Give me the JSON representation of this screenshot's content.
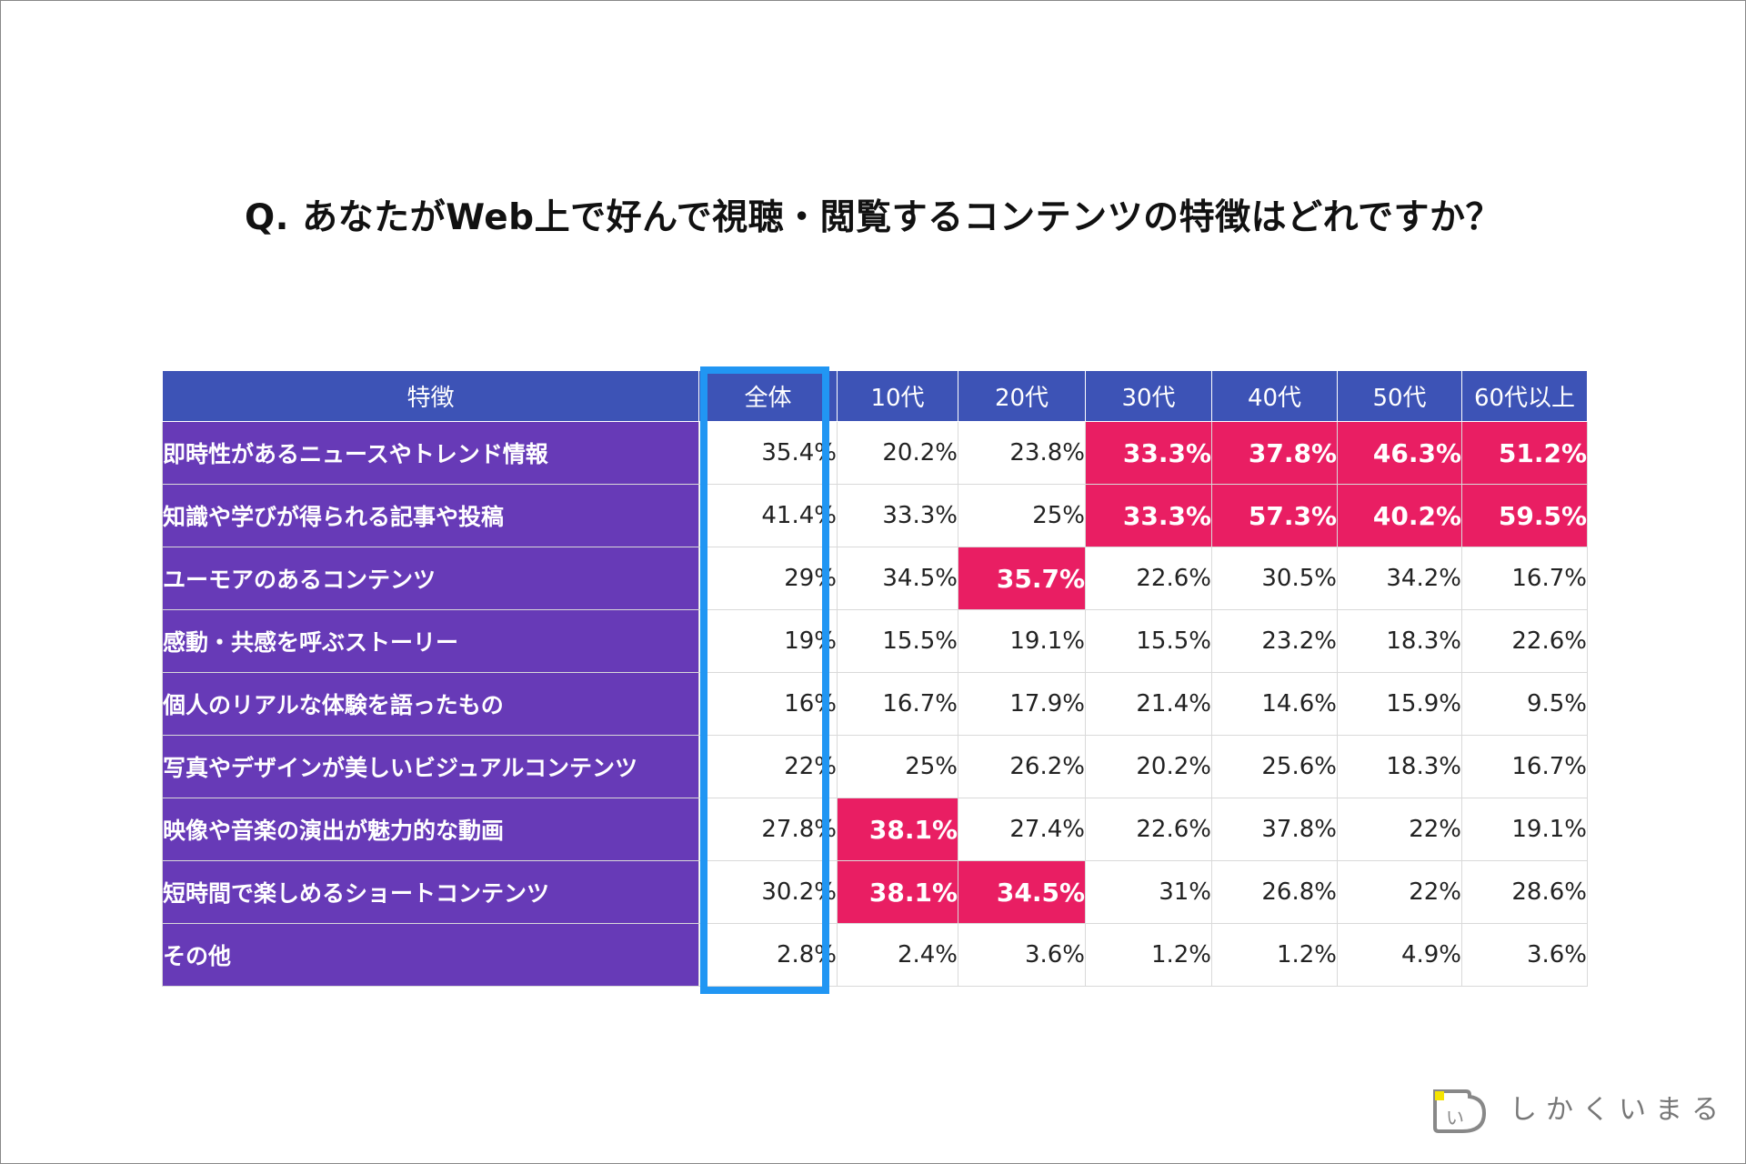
{
  "title": "Q. あなたがWeb上で好んで視聴・閲覧するコンテンツの特徴はどれですか？",
  "colors": {
    "header": "#3d53b6",
    "feature": "#673ab7",
    "highlight": "#e91e63",
    "overall_outline": "#2196f3"
  },
  "chart_data": {
    "type": "table",
    "title": "Q. あなたがWeb上で好んで視聴・閲覧するコンテンツの特徴はどれですか？",
    "columns": [
      "特徴",
      "全体",
      "10代",
      "20代",
      "30代",
      "40代",
      "50代",
      "60代以上"
    ],
    "rows": [
      {
        "label": "即時性があるニュースやトレンド情報",
        "values": [
          "35.4%",
          "20.2%",
          "23.8%",
          "33.3%",
          "37.8%",
          "46.3%",
          "51.2%"
        ],
        "highlight": [
          false,
          false,
          false,
          true,
          true,
          true,
          true
        ]
      },
      {
        "label": "知識や学びが得られる記事や投稿",
        "values": [
          "41.4%",
          "33.3%",
          "25%",
          "33.3%",
          "57.3%",
          "40.2%",
          "59.5%"
        ],
        "highlight": [
          false,
          false,
          false,
          true,
          true,
          true,
          true
        ]
      },
      {
        "label": "ユーモアのあるコンテンツ",
        "values": [
          "29%",
          "34.5%",
          "35.7%",
          "22.6%",
          "30.5%",
          "34.2%",
          "16.7%"
        ],
        "highlight": [
          false,
          false,
          true,
          false,
          false,
          false,
          false
        ]
      },
      {
        "label": "感動・共感を呼ぶストーリー",
        "values": [
          "19%",
          "15.5%",
          "19.1%",
          "15.5%",
          "23.2%",
          "18.3%",
          "22.6%"
        ],
        "highlight": [
          false,
          false,
          false,
          false,
          false,
          false,
          false
        ]
      },
      {
        "label": "個人のリアルな体験を語ったもの",
        "values": [
          "16%",
          "16.7%",
          "17.9%",
          "21.4%",
          "14.6%",
          "15.9%",
          "9.5%"
        ],
        "highlight": [
          false,
          false,
          false,
          false,
          false,
          false,
          false
        ]
      },
      {
        "label": "写真やデザインが美しいビジュアルコンテンツ",
        "values": [
          "22%",
          "25%",
          "26.2%",
          "20.2%",
          "25.6%",
          "18.3%",
          "16.7%"
        ],
        "highlight": [
          false,
          false,
          false,
          false,
          false,
          false,
          false
        ]
      },
      {
        "label": "映像や音楽の演出が魅力的な動画",
        "values": [
          "27.8%",
          "38.1%",
          "27.4%",
          "22.6%",
          "37.8%",
          "22%",
          "19.1%"
        ],
        "highlight": [
          false,
          true,
          false,
          false,
          false,
          false,
          false
        ]
      },
      {
        "label": "短時間で楽しめるショートコンテンツ",
        "values": [
          "30.2%",
          "38.1%",
          "34.5%",
          "31%",
          "26.8%",
          "22%",
          "28.6%"
        ],
        "highlight": [
          false,
          true,
          true,
          false,
          false,
          false,
          false
        ]
      },
      {
        "label": "その他",
        "values": [
          "2.8%",
          "2.4%",
          "3.6%",
          "1.2%",
          "1.2%",
          "4.9%",
          "3.6%"
        ],
        "highlight": [
          false,
          false,
          false,
          false,
          false,
          false,
          false
        ]
      }
    ]
  },
  "logo": {
    "text": "しかくいまる",
    "icon": "shikakuimaru-logo-icon"
  }
}
